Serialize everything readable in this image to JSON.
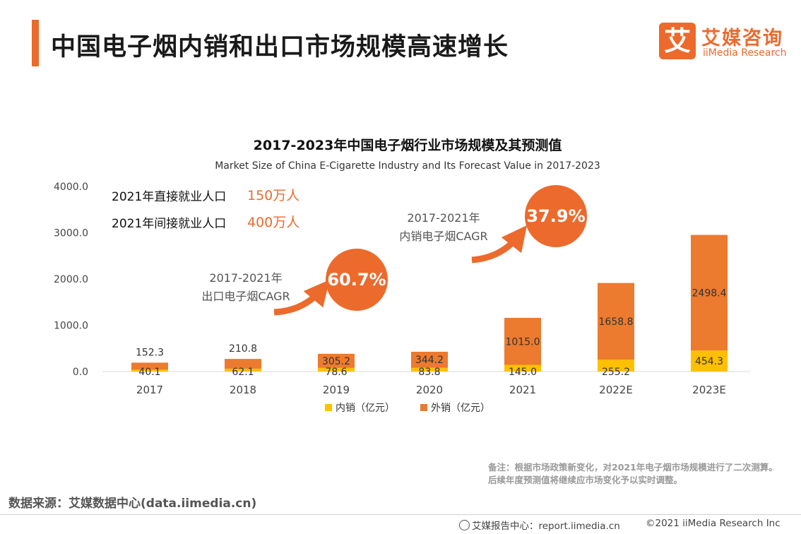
{
  "header": {
    "title": "中国电子烟内销和出口市场规模高速增长",
    "logo_mark": "艾",
    "logo_cn": "艾媒咨询",
    "logo_en": "iiMedia Research"
  },
  "employment": [
    {
      "label": "2021年直接就业人口",
      "value": "150万人"
    },
    {
      "label": "2021年间接就业人口",
      "value": "400万人"
    }
  ],
  "cagr": [
    {
      "line1": "2017-2021年",
      "line2": "出口电子烟CAGR",
      "value": "60.7%"
    },
    {
      "line1": "2017-2021年",
      "line2": "内销电子烟CAGR",
      "value": "37.9%"
    }
  ],
  "chart_data": {
    "type": "bar",
    "stacked": true,
    "title": "2017-2023年中国电子烟行业市场规模及其预测值",
    "subtitle": "Market Size of China E-Cigarette Industry and Its Forecast Value in 2017-2023",
    "categories": [
      "2017",
      "2018",
      "2019",
      "2020",
      "2021",
      "2022E",
      "2023E"
    ],
    "series": [
      {
        "name": "内销（亿元）",
        "color": "#ffc000",
        "values": [
          40.1,
          62.1,
          78.6,
          83.8,
          145.0,
          255.2,
          454.3
        ],
        "labels": [
          "40.1",
          "62.1",
          "78.6",
          "83.8",
          "145.0",
          "255.2",
          "454.3"
        ]
      },
      {
        "name": "外销（亿元）",
        "color": "#ec7a2f",
        "values": [
          152.3,
          210.8,
          305.2,
          344.2,
          1015.0,
          1658.8,
          2498.4
        ],
        "labels": [
          "152.3",
          "210.8",
          "305.2",
          "344.2",
          "1015.0",
          "1658.8",
          "2498.4"
        ]
      }
    ],
    "yticks": [
      "0.0",
      "1000.0",
      "2000.0",
      "3000.0",
      "4000.0"
    ],
    "ylim": [
      0,
      4000
    ],
    "grid": false,
    "legend": "bottom"
  },
  "note": "备注：根据市场政策新变化，对2021年电子烟市场规模进行了二次测算。后续年度预测值将继续应市场变化予以实时调整。",
  "source": "数据来源：艾媒数据中心(data.iimedia.cn)",
  "footer": {
    "report": "艾媒报告中心：report.iimedia.cn",
    "copyright": "©2021  iiMedia Research  Inc"
  }
}
